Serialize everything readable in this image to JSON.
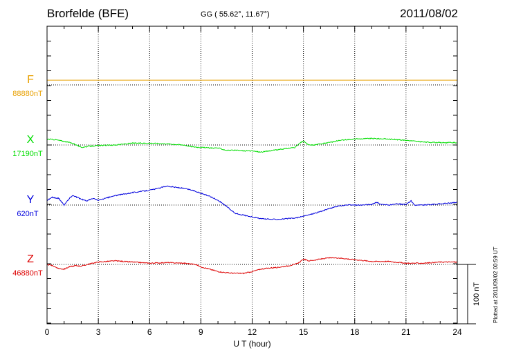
{
  "header": {
    "station": "Brorfelde (BFE)",
    "coords": "GG ( 55.62°,  11.67°)",
    "date": "2011/08/02"
  },
  "plotted_note": "Plotted at 2011/09/02 00:59 UT",
  "scale_label": "100 nT",
  "colors": {
    "F": "#e8a000",
    "X": "#00dd00",
    "Y": "#0000dd",
    "Z": "#dd0000",
    "axis": "#000000"
  },
  "chart_data": {
    "type": "line",
    "xlabel": "U T (hour)",
    "xlim": [
      0,
      24
    ],
    "x_ticks": [
      "0",
      "3",
      "6",
      "9",
      "12",
      "15",
      "18",
      "21",
      "24"
    ],
    "grid": true,
    "scale_bar_nT": 100,
    "series": [
      {
        "name": "F",
        "baseline_label": "88880nT",
        "baseline": 88880,
        "x": [
          0,
          24
        ],
        "values": [
          88888,
          88888
        ]
      },
      {
        "name": "X",
        "baseline_label": "17190nT",
        "baseline": 17190,
        "x": [
          0,
          0.5,
          1,
          1.5,
          2,
          2.5,
          3,
          4,
          5,
          6,
          7,
          8,
          8.5,
          9,
          9.5,
          10,
          10.5,
          11,
          11.5,
          12,
          12.5,
          13,
          13.5,
          14,
          14.5,
          14.8,
          15,
          15.3,
          15.6,
          16,
          16.5,
          17,
          17.5,
          18,
          19,
          20,
          21,
          22,
          23,
          24
        ],
        "values": [
          17200,
          17199,
          17196,
          17193,
          17186,
          17188,
          17189,
          17190,
          17193,
          17193,
          17192,
          17190,
          17187,
          17186,
          17185,
          17185,
          17181,
          17181,
          17180,
          17180,
          17178,
          17180,
          17182,
          17184,
          17186,
          17193,
          17197,
          17190,
          17190,
          17192,
          17194,
          17197,
          17199,
          17200,
          17201,
          17200,
          17198,
          17195,
          17194,
          17194
        ]
      },
      {
        "name": "Y",
        "baseline_label": "620nT",
        "baseline": 620,
        "x": [
          0,
          0.3,
          0.7,
          1,
          1.3,
          1.5,
          2,
          2.3,
          2.7,
          3,
          3.5,
          4,
          5,
          6,
          6.5,
          7,
          7.5,
          8,
          8.5,
          9,
          9.5,
          10,
          10.5,
          11,
          11.5,
          12,
          12.5,
          13,
          13.5,
          14,
          14.5,
          15,
          15.5,
          16,
          16.5,
          17,
          17.5,
          18,
          18.5,
          19,
          19.3,
          19.5,
          20,
          20.5,
          21,
          21.3,
          21.5,
          22,
          22.5,
          23,
          23.5,
          24
        ],
        "values": [
          628,
          633,
          631,
          620,
          631,
          636,
          630,
          627,
          631,
          628,
          632,
          636,
          641,
          645,
          648,
          652,
          650,
          648,
          645,
          640,
          635,
          628,
          618,
          606,
          603,
          600,
          597,
          596,
          596,
          597,
          598,
          601,
          605,
          609,
          614,
          618,
          620,
          620,
          620,
          621,
          625,
          621,
          620,
          622,
          621,
          627,
          620,
          620,
          621,
          622,
          623,
          625
        ]
      },
      {
        "name": "Z",
        "baseline_label": "46880nT",
        "baseline": 46880,
        "x": [
          0,
          0.3,
          0.7,
          1,
          1.3,
          1.7,
          2,
          2.5,
          3,
          3.5,
          4,
          5,
          6,
          7,
          8,
          8.7,
          9,
          9.5,
          10,
          10.5,
          11,
          11.5,
          12,
          12.5,
          13,
          13.5,
          14,
          14.5,
          14.8,
          15,
          15.3,
          15.6,
          16,
          16.5,
          17,
          18,
          19,
          20,
          21,
          22,
          23,
          24
        ],
        "values": [
          46880,
          46878,
          46873,
          46872,
          46876,
          46878,
          46877,
          46881,
          46884,
          46885,
          46886,
          46884,
          46882,
          46883,
          46882,
          46880,
          46876,
          46872,
          46868,
          46866,
          46865,
          46865,
          46868,
          46872,
          46874,
          46875,
          46877,
          46880,
          46884,
          46889,
          46886,
          46887,
          46889,
          46891,
          46891,
          46888,
          46885,
          46885,
          46882,
          46882,
          46884,
          46884
        ]
      }
    ]
  }
}
